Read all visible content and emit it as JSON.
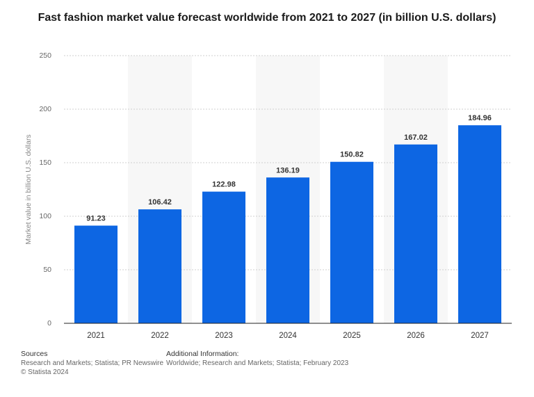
{
  "title": "Fast fashion market value forecast worldwide from 2021 to 2027 (in billion U.S. dollars)",
  "chart_data": {
    "type": "bar",
    "categories": [
      "2021",
      "2022",
      "2023",
      "2024",
      "2025",
      "2026",
      "2027"
    ],
    "values": [
      91.23,
      106.42,
      122.98,
      136.19,
      150.82,
      167.02,
      184.96
    ],
    "value_labels": [
      "91.23",
      "106.42",
      "122.98",
      "136.19",
      "150.82",
      "167.02",
      "184.96"
    ],
    "ylabel": "Market value in billion U.S. dollars",
    "xlabel": "",
    "ylim": [
      0,
      250
    ],
    "yticks": [
      0,
      50,
      100,
      150,
      200,
      250
    ],
    "grid": true,
    "bar_color": "#0d66e3",
    "alt_band_color": "#f7f7f7"
  },
  "footer": {
    "sources_title": "Sources",
    "sources_text": "Research and Markets; Statista; PR Newswire",
    "copyright": "© Statista 2024",
    "additional_title": "Additional Information:",
    "additional_text": "Worldwide; Research and Markets; Statista; February 2023"
  }
}
